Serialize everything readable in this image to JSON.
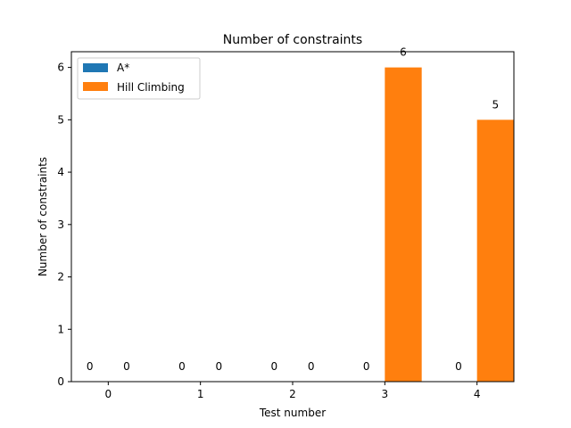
{
  "chart_data": {
    "type": "bar",
    "title": "Number of constraints",
    "xlabel": "Test number",
    "ylabel": "Number of constraints",
    "categories": [
      "0",
      "1",
      "2",
      "3",
      "4"
    ],
    "series": [
      {
        "name": "A*",
        "color": "#1f77b4",
        "values": [
          0,
          0,
          0,
          0,
          0
        ]
      },
      {
        "name": "Hill Climbing",
        "color": "#ff7f0e",
        "values": [
          0,
          0,
          0,
          6,
          5
        ]
      }
    ],
    "ylim": [
      0,
      6.3
    ],
    "yticks": [
      "0",
      "1",
      "2",
      "3",
      "4",
      "5",
      "6"
    ],
    "xlim": [
      -0.4,
      4.4
    ],
    "bar_width": 0.4,
    "grid": false,
    "legend_position": "upper left"
  }
}
